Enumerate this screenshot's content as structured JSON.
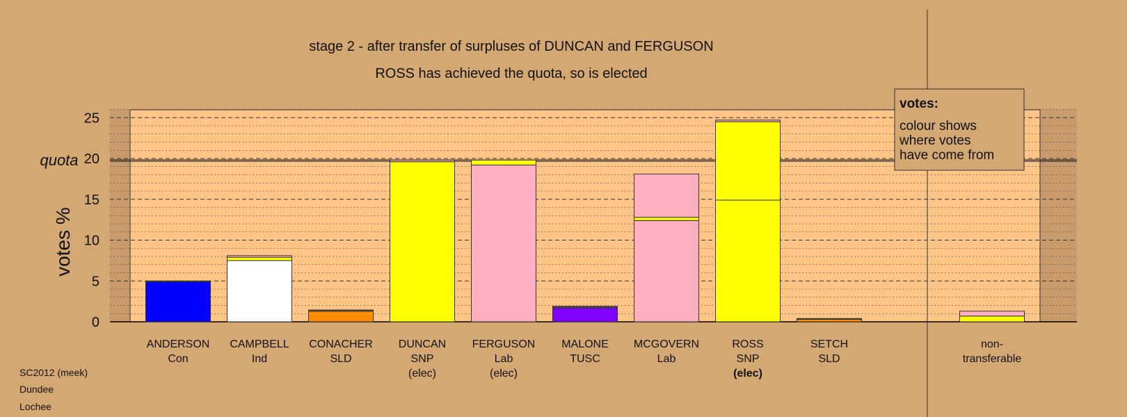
{
  "chart_data": {
    "type": "bar",
    "stacked": true,
    "title": "stage 2 - after transfer of surpluses of DUNCAN and FERGUSON",
    "subtitle": "ROSS has achieved the quota, so is elected",
    "ylabel": "votes %",
    "ylim": [
      0,
      26
    ],
    "yticks": [
      "0",
      "5",
      "10",
      "15",
      "20",
      "25"
    ],
    "quota": {
      "label": "quota",
      "value": 19.8
    },
    "grid": true,
    "legend": {
      "title": "votes:",
      "lines": [
        "colour shows",
        "where votes",
        "have come from"
      ],
      "placement": "top-right"
    },
    "colors": {
      "Con": "#0000ff",
      "Ind": "#ffffff",
      "SLD": "#ff8c00",
      "SNP": "#ffff00",
      "Lab": "#ffb0c0",
      "TUSC": "#8000ff",
      "plot_bg": "#ffc587",
      "page_bg": "#d4a873"
    },
    "candidates": [
      {
        "name": "ANDERSON",
        "party": "Con",
        "status": "",
        "segments": [
          {
            "from": "Con",
            "value": 4.9
          },
          {
            "from": "SNP",
            "value": 0.05
          },
          {
            "from": "Lab",
            "value": 0.05
          }
        ]
      },
      {
        "name": "CAMPBELL",
        "party": "Ind",
        "status": "",
        "segments": [
          {
            "from": "Ind",
            "value": 7.5
          },
          {
            "from": "SNP",
            "value": 0.4
          },
          {
            "from": "Lab",
            "value": 0.2
          }
        ]
      },
      {
        "name": "CONACHER",
        "party": "SLD",
        "status": "",
        "segments": [
          {
            "from": "SLD",
            "value": 1.3
          },
          {
            "from": "SNP",
            "value": 0.05
          },
          {
            "from": "Lab",
            "value": 0.1
          }
        ]
      },
      {
        "name": "DUNCAN",
        "party": "SNP",
        "status": "(elec)",
        "segments": [
          {
            "from": "SNP",
            "value": 19.6
          },
          {
            "from": "Lab",
            "value": 0.2
          }
        ]
      },
      {
        "name": "FERGUSON",
        "party": "Lab",
        "status": "(elec)",
        "segments": [
          {
            "from": "Lab",
            "value": 19.2
          },
          {
            "from": "SNP",
            "value": 0.6
          }
        ]
      },
      {
        "name": "MALONE",
        "party": "TUSC",
        "status": "",
        "segments": [
          {
            "from": "TUSC",
            "value": 1.7
          },
          {
            "from": "SNP",
            "value": 0.1
          },
          {
            "from": "Lab",
            "value": 0.1
          }
        ]
      },
      {
        "name": "MCGOVERN",
        "party": "Lab",
        "status": "",
        "segments": [
          {
            "from": "Lab",
            "value": 12.4
          },
          {
            "from": "SNP",
            "value": 0.4
          },
          {
            "from": "Lab",
            "value": 5.3
          }
        ]
      },
      {
        "name": "ROSS",
        "party": "SNP",
        "status": "(elec)",
        "bold_status": true,
        "segments": [
          {
            "from": "SNP",
            "value": 14.9
          },
          {
            "from": "SNP",
            "value": 9.6
          },
          {
            "from": "Lab",
            "value": 0.2
          }
        ]
      },
      {
        "name": "SETCH",
        "party": "SLD",
        "status": "",
        "segments": [
          {
            "from": "SLD",
            "value": 0.3
          },
          {
            "from": "SNP",
            "value": 0.05
          },
          {
            "from": "Lab",
            "value": 0.05
          }
        ]
      }
    ],
    "nontransferable": {
      "label_lines": [
        "non-",
        "transferable"
      ],
      "segments": [
        {
          "from": "SNP",
          "value": 0.7
        },
        {
          "from": "Lab",
          "value": 0.6
        }
      ]
    }
  },
  "footer": {
    "lines": [
      "SC2012 (meek)",
      "Dundee",
      "Lochee"
    ]
  }
}
